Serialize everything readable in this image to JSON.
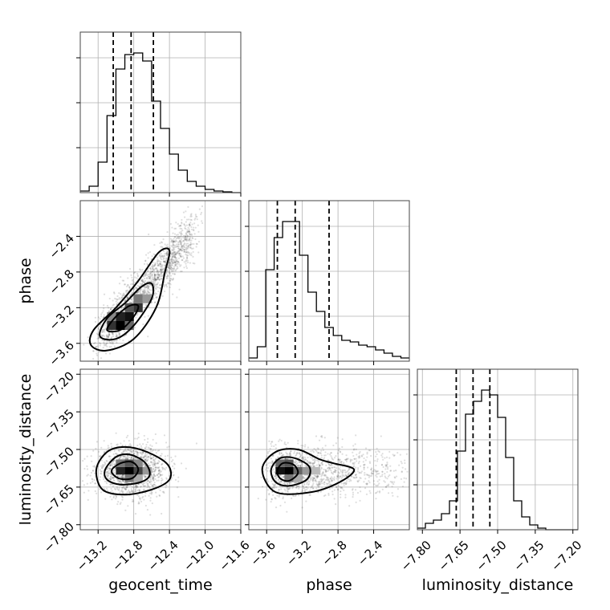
{
  "chart_data": {
    "type": "corner",
    "parameters": [
      {
        "key": "geocent_time",
        "label": "geocent_time",
        "range": [
          -13.4,
          -11.6
        ],
        "ticks": [
          -13.2,
          -12.8,
          -12.4,
          -12.0,
          -11.6
        ],
        "tick_labels": [
          "−13.2",
          "−12.8",
          "−12.4",
          "−12.0",
          "−11.6"
        ]
      },
      {
        "key": "phase",
        "label": "phase",
        "range": [
          -3.8,
          -2.0
        ],
        "ticks": [
          -3.6,
          -3.2,
          -2.8,
          -2.4
        ],
        "tick_labels": [
          "−3.6",
          "−3.2",
          "−2.8",
          "−2.4"
        ]
      },
      {
        "key": "luminosity_distance",
        "label": "luminosity_distance",
        "range": [
          -7.82,
          -7.18
        ],
        "ticks": [
          -7.8,
          -7.65,
          -7.5,
          -7.35,
          -7.2
        ],
        "tick_labels": [
          "−7.80",
          "−7.65",
          "−7.50",
          "−7.35",
          "−7.20"
        ]
      }
    ],
    "histograms": [
      {
        "param": "geocent_time",
        "bin_edges_range": [
          -13.4,
          -11.6
        ],
        "heights": [
          0.01,
          0.04,
          0.19,
          0.48,
          0.77,
          0.86,
          0.87,
          0.82,
          0.57,
          0.4,
          0.24,
          0.14,
          0.07,
          0.04,
          0.02,
          0.01,
          0.005,
          0.0
        ],
        "quantiles": [
          -13.03,
          -12.83,
          -12.58
        ]
      },
      {
        "param": "phase",
        "bin_edges_range": [
          -3.8,
          -2.0
        ],
        "heights": [
          0.02,
          0.09,
          0.57,
          0.77,
          0.87,
          0.87,
          0.66,
          0.43,
          0.31,
          0.21,
          0.16,
          0.13,
          0.12,
          0.1,
          0.09,
          0.07,
          0.05,
          0.03,
          0.02
        ],
        "quantiles": [
          -3.48,
          -3.28,
          -2.9
        ]
      },
      {
        "param": "luminosity_distance",
        "bin_edges_range": [
          -7.82,
          -7.18
        ],
        "heights": [
          0.01,
          0.04,
          0.06,
          0.1,
          0.18,
          0.49,
          0.72,
          0.8,
          0.87,
          0.84,
          0.7,
          0.45,
          0.18,
          0.08,
          0.03,
          0.01,
          0.0,
          0.0,
          0.0,
          0.0
        ],
        "quantiles": [
          -7.665,
          -7.598,
          -7.531
        ]
      }
    ],
    "joint": [
      {
        "x": "geocent_time",
        "y": "phase",
        "center": [
          -12.85,
          -3.35
        ],
        "contour_sigma": "1/2/3"
      },
      {
        "x": "geocent_time",
        "y": "luminosity_distance",
        "center": [
          -12.85,
          -7.585
        ],
        "contour_sigma": "1/2/3"
      },
      {
        "x": "phase",
        "y": "luminosity_distance",
        "center": [
          -3.45,
          -7.585
        ],
        "contour_sigma": "1/2/3"
      }
    ],
    "grid": true
  }
}
